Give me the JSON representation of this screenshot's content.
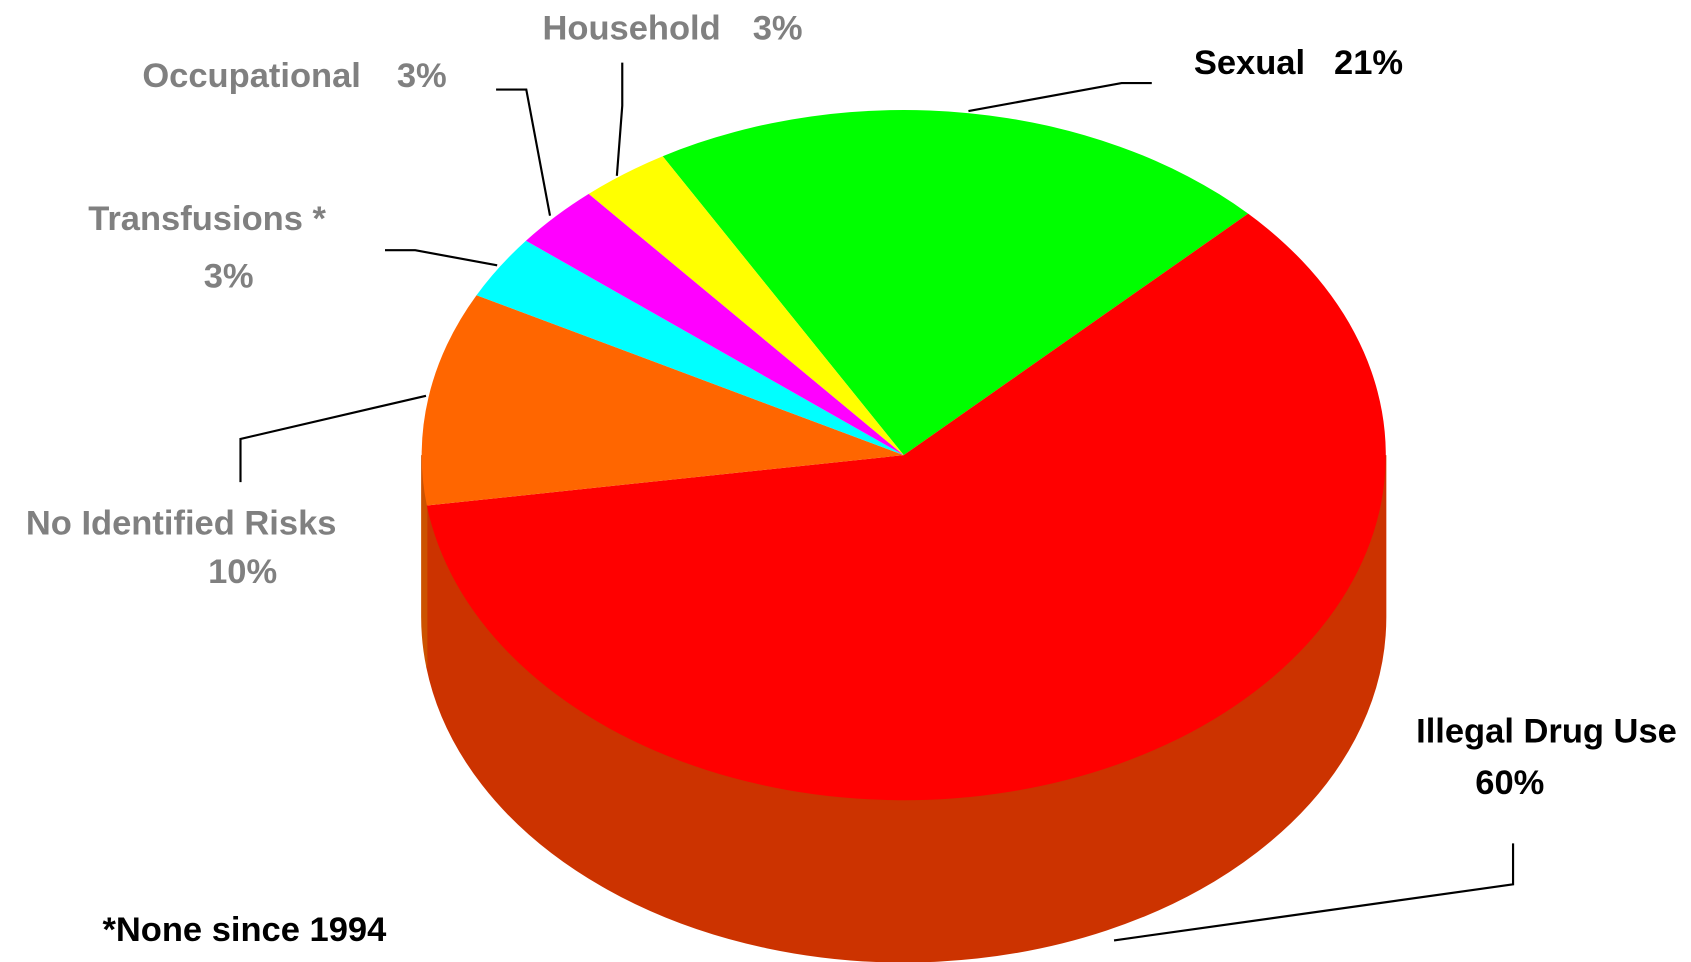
{
  "chart_data": {
    "type": "pie3d",
    "categories": [
      "Sexual",
      "Illegal Drug Use",
      "No Identified Risks",
      "Transfusions *",
      "Occupational",
      "Household"
    ],
    "values": [
      21,
      60,
      10,
      3,
      3,
      3
    ],
    "value_labels": [
      "21%",
      "60%",
      "10%",
      "3%",
      "3%",
      "3%"
    ],
    "colors": [
      "#00ff00",
      "#ff0000",
      "#ff6600",
      "#00ffff",
      "#ff00ff",
      "#ffff00"
    ],
    "side_colors": [
      "#00cc00",
      "#cc3300",
      "#cc5200",
      "#00cccc",
      "#cc00cc",
      "#cccc00"
    ],
    "label_colors": [
      "#000000",
      "#000000",
      "#808080",
      "#808080",
      "#808080",
      "#808080"
    ],
    "annotation": "*None since 1994"
  }
}
